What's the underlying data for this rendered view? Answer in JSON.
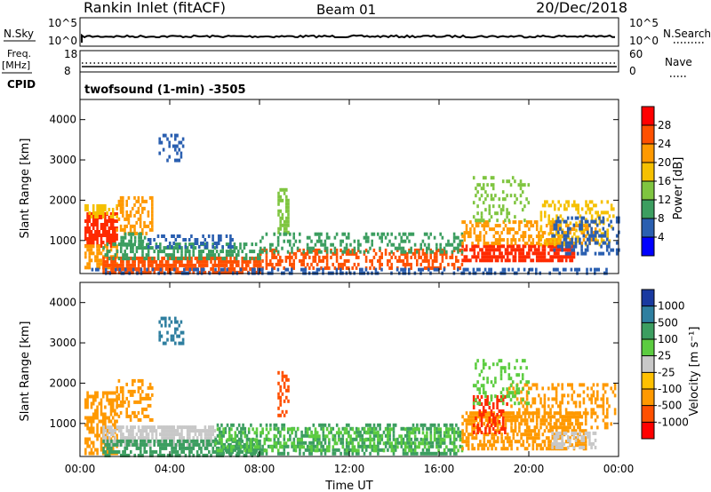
{
  "header": {
    "site": "Rankin Inlet (fitACF)",
    "beam": "Beam 01",
    "date": "20/Dec/2018"
  },
  "noise_panel": {
    "left_label": "N.Sky",
    "left_ticks": [
      "10^5",
      "10^0"
    ],
    "right_ticks": [
      "10^5",
      "10^0"
    ],
    "right_label": "N.Search"
  },
  "freq_panel": {
    "left_label_1": "Freq.",
    "left_label_2": "[MHz]",
    "left_ticks": [
      "18",
      "8"
    ],
    "right_ticks": [
      "60",
      "0"
    ],
    "right_label": "Nave",
    "freq_value_mhz": 10,
    "nave_value": 24
  },
  "cpid": {
    "label": "CPID",
    "value": "twofsound (1-min) -3505"
  },
  "chart_data": [
    {
      "type": "heatmap",
      "name": "power",
      "ylabel": "Slant Range [km]",
      "ylim": [
        180,
        4500
      ],
      "yticks": [
        "1000",
        "2000",
        "3000",
        "4000"
      ],
      "xlim_hours": [
        0,
        24
      ],
      "xticks": [
        "00:00",
        "04:00",
        "08:00",
        "12:00",
        "16:00",
        "20:00",
        "00:00"
      ],
      "colorbar": {
        "label": "Power [dB]",
        "ticks": [
          "28",
          "24",
          "20",
          "16",
          "12",
          "8",
          "4"
        ],
        "colors": [
          "#ff0000",
          "#ff5000",
          "#ff9900",
          "#f5c000",
          "#7fc540",
          "#3c9e60",
          "#2a5fb0",
          "#0000ff"
        ]
      },
      "regions": [
        {
          "t0": 0.2,
          "t1": 1.6,
          "r0": 900,
          "r1": 1700,
          "color": "#ff2a00",
          "density": 0.8
        },
        {
          "t0": 0.2,
          "t1": 1.6,
          "r0": 300,
          "r1": 900,
          "color": "#ff9900",
          "density": 0.6
        },
        {
          "t0": 0.2,
          "t1": 1.8,
          "r0": 1600,
          "r1": 1900,
          "color": "#f5c000",
          "density": 0.5
        },
        {
          "t0": 1.6,
          "t1": 3.2,
          "r0": 1200,
          "r1": 2100,
          "color": "#ff9900",
          "density": 0.45
        },
        {
          "t0": 1.8,
          "t1": 3.0,
          "r0": 900,
          "r1": 1200,
          "color": "#3c9e60",
          "density": 0.5
        },
        {
          "t0": 1.0,
          "t1": 8.0,
          "r0": 200,
          "r1": 600,
          "color": "#ff5000",
          "density": 0.75
        },
        {
          "t0": 1.0,
          "t1": 8.0,
          "r0": 550,
          "r1": 950,
          "color": "#3c9e60",
          "density": 0.45
        },
        {
          "t0": 3.0,
          "t1": 6.8,
          "r0": 850,
          "r1": 1150,
          "color": "#2a5fb0",
          "density": 0.4
        },
        {
          "t0": 3.5,
          "t1": 4.6,
          "r0": 3000,
          "r1": 3650,
          "color": "#2a5fb0",
          "density": 0.35
        },
        {
          "t0": 8.8,
          "t1": 9.3,
          "r0": 1200,
          "r1": 2300,
          "color": "#7fc540",
          "density": 0.55
        },
        {
          "t0": 8.0,
          "t1": 17.0,
          "r0": 300,
          "r1": 800,
          "color": "#ff5000",
          "density": 0.45
        },
        {
          "t0": 8.0,
          "t1": 17.0,
          "r0": 700,
          "r1": 1200,
          "color": "#3c9e60",
          "density": 0.3
        },
        {
          "t0": 17.0,
          "t1": 22.0,
          "r0": 500,
          "r1": 900,
          "color": "#ff2a00",
          "density": 0.75
        },
        {
          "t0": 17.0,
          "t1": 23.0,
          "r0": 900,
          "r1": 1500,
          "color": "#ff9900",
          "density": 0.45
        },
        {
          "t0": 17.5,
          "t1": 20.0,
          "r0": 1500,
          "r1": 2600,
          "color": "#7fc540",
          "density": 0.25
        },
        {
          "t0": 20.5,
          "t1": 23.8,
          "r0": 900,
          "r1": 2000,
          "color": "#f5c000",
          "density": 0.3
        },
        {
          "t0": 21.0,
          "t1": 24.0,
          "r0": 700,
          "r1": 1600,
          "color": "#2a5fb0",
          "density": 0.35
        },
        {
          "t0": 0.5,
          "t1": 23.5,
          "r0": 200,
          "r1": 320,
          "color": "#2a5fb0",
          "density": 0.35
        }
      ]
    },
    {
      "type": "heatmap",
      "name": "velocity",
      "ylabel": "Slant Range [km]",
      "ylim": [
        180,
        4500
      ],
      "yticks": [
        "1000",
        "2000",
        "3000",
        "4000"
      ],
      "xlabel": "Time UT",
      "xlim_hours": [
        0,
        24
      ],
      "xticks": [
        "00:00",
        "04:00",
        "08:00",
        "12:00",
        "16:00",
        "20:00",
        "00:00"
      ],
      "colorbar": {
        "label": "Velocity [m s⁻¹]",
        "ticks": [
          "1000",
          "500",
          "100",
          "25",
          "-25",
          "-100",
          "-500",
          "-1000"
        ],
        "colors": [
          "#1a3aa0",
          "#2f7fa0",
          "#3c9e60",
          "#5ccc40",
          "#c8c8c8",
          "#ffc000",
          "#ff9900",
          "#ff5000",
          "#ff0000"
        ]
      },
      "regions": [
        {
          "t0": 0.2,
          "t1": 1.6,
          "r0": 300,
          "r1": 1800,
          "color": "#ff9900",
          "density": 0.55
        },
        {
          "t0": 1.0,
          "t1": 6.0,
          "r0": 500,
          "r1": 950,
          "color": "#c8c8c8",
          "density": 0.7
        },
        {
          "t0": 1.0,
          "t1": 8.0,
          "r0": 200,
          "r1": 600,
          "color": "#3c9e60",
          "density": 0.6
        },
        {
          "t0": 1.6,
          "t1": 3.2,
          "r0": 1100,
          "r1": 2100,
          "color": "#ff9900",
          "density": 0.4
        },
        {
          "t0": 3.5,
          "t1": 4.6,
          "r0": 3000,
          "r1": 3650,
          "color": "#2f7fa0",
          "density": 0.35
        },
        {
          "t0": 8.8,
          "t1": 9.3,
          "r0": 1200,
          "r1": 2300,
          "color": "#ff5000",
          "density": 0.45
        },
        {
          "t0": 6.0,
          "t1": 17.0,
          "r0": 250,
          "r1": 1000,
          "color": "#3c9e60",
          "density": 0.45
        },
        {
          "t0": 6.0,
          "t1": 17.0,
          "r0": 300,
          "r1": 900,
          "color": "#5ccc40",
          "density": 0.3
        },
        {
          "t0": 17.0,
          "t1": 22.5,
          "r0": 400,
          "r1": 1300,
          "color": "#ff9900",
          "density": 0.6
        },
        {
          "t0": 17.5,
          "t1": 19.0,
          "r0": 800,
          "r1": 1700,
          "color": "#ff2a00",
          "density": 0.4
        },
        {
          "t0": 19.0,
          "t1": 23.8,
          "r0": 900,
          "r1": 2000,
          "color": "#ff9900",
          "density": 0.3
        },
        {
          "t0": 21.0,
          "t1": 23.0,
          "r0": 400,
          "r1": 800,
          "color": "#c8c8c8",
          "density": 0.45
        },
        {
          "t0": 17.5,
          "t1": 20.0,
          "r0": 1500,
          "r1": 2600,
          "color": "#5ccc40",
          "density": 0.2
        }
      ]
    }
  ]
}
